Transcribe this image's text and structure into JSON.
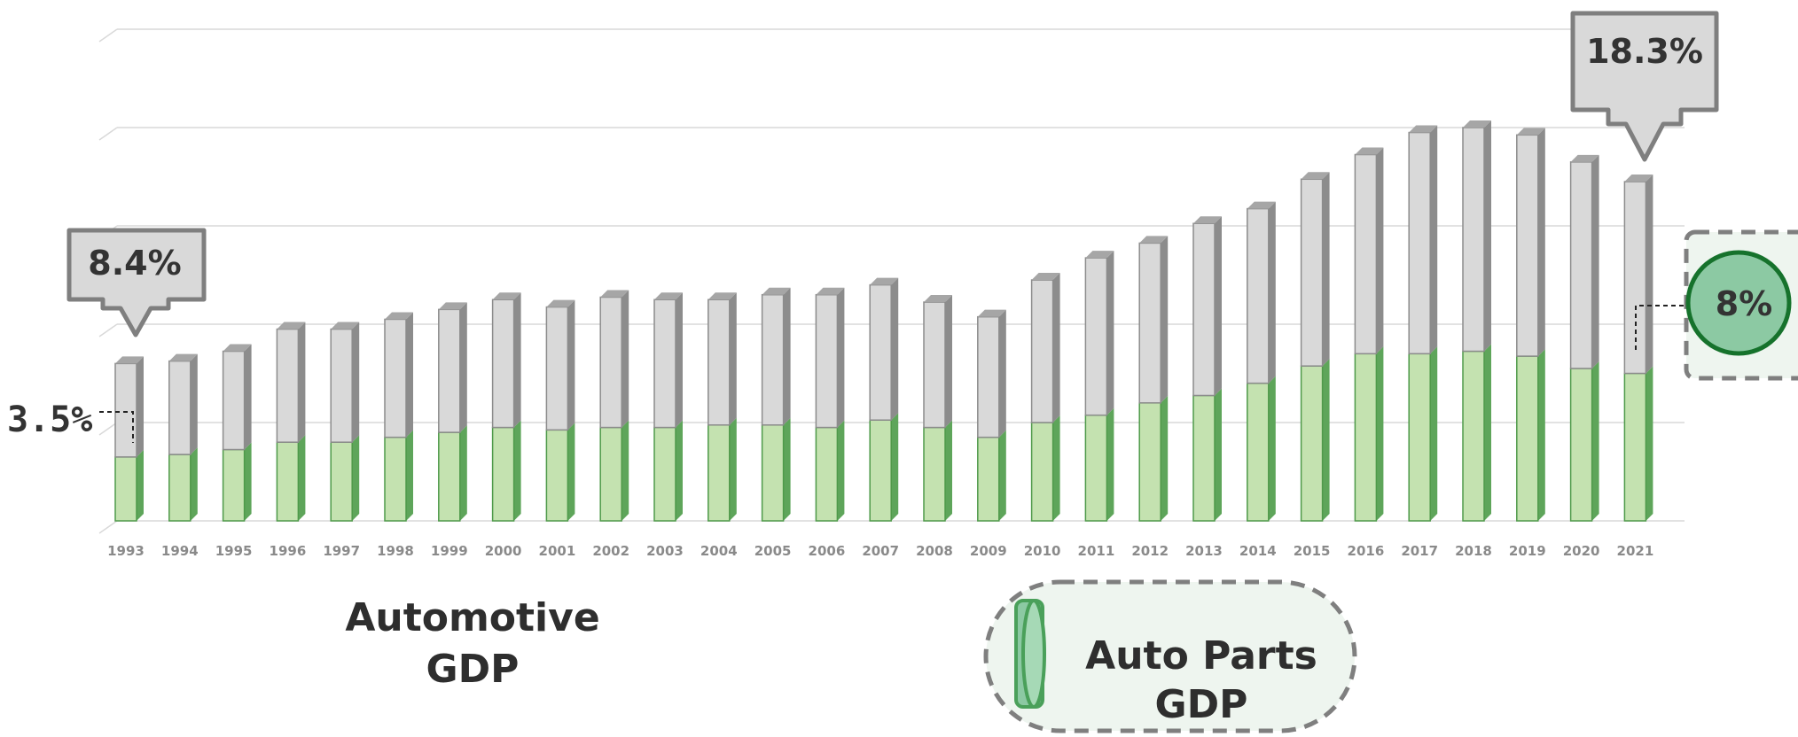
{
  "chart_data": {
    "type": "bar",
    "stacked": true,
    "categories": [
      "1993",
      "1994",
      "1995",
      "1996",
      "1997",
      "1998",
      "1999",
      "2000",
      "2001",
      "2002",
      "2003",
      "2004",
      "2005",
      "2006",
      "2007",
      "2008",
      "2009",
      "2010",
      "2011",
      "2012",
      "2013",
      "2014",
      "2015",
      "2016",
      "2017",
      "2018",
      "2019",
      "2020",
      "2021"
    ],
    "series": [
      {
        "name": "",
        "color": "#c4e2b0",
        "values": [
          2.6,
          2.7,
          2.9,
          3.2,
          3.2,
          3.4,
          3.6,
          3.8,
          3.7,
          3.8,
          3.8,
          3.9,
          3.9,
          3.8,
          4.1,
          3.8,
          3.4,
          4.0,
          4.3,
          4.8,
          5.1,
          5.6,
          6.3,
          6.8,
          6.8,
          6.9,
          6.7,
          6.2,
          6.0
        ]
      },
      {
        "name": "",
        "color": "#d9d9d9",
        "values": [
          3.8,
          3.8,
          4.0,
          4.6,
          4.6,
          4.8,
          5.0,
          5.2,
          5.0,
          5.3,
          5.2,
          5.1,
          5.3,
          5.4,
          5.5,
          5.1,
          4.9,
          5.8,
          6.4,
          6.5,
          7.0,
          7.1,
          7.6,
          8.1,
          9.0,
          9.1,
          9.0,
          8.4,
          7.8
        ]
      }
    ],
    "ylim": [
      0,
      20
    ],
    "grid": true,
    "annotations": {
      "first_total": "8.4%",
      "first_parts": "3.5%",
      "last_total": "18.3%",
      "last_parts": "8%"
    }
  },
  "legend": {
    "automotive_line1": "Automotive",
    "automotive_line2": "GDP",
    "autoparts_line1": "Auto Parts",
    "autoparts_line2": "GDP"
  },
  "colors": {
    "parts_fill": "#c4e2b0",
    "parts_side": "#5ea55a",
    "parts_top": "#a6d28f",
    "auto_fill": "#d9d9d9",
    "auto_side": "#8c8c8c",
    "auto_top": "#a6a6a6",
    "badge": "#8cc9a3",
    "badge_border": "#16722c"
  }
}
